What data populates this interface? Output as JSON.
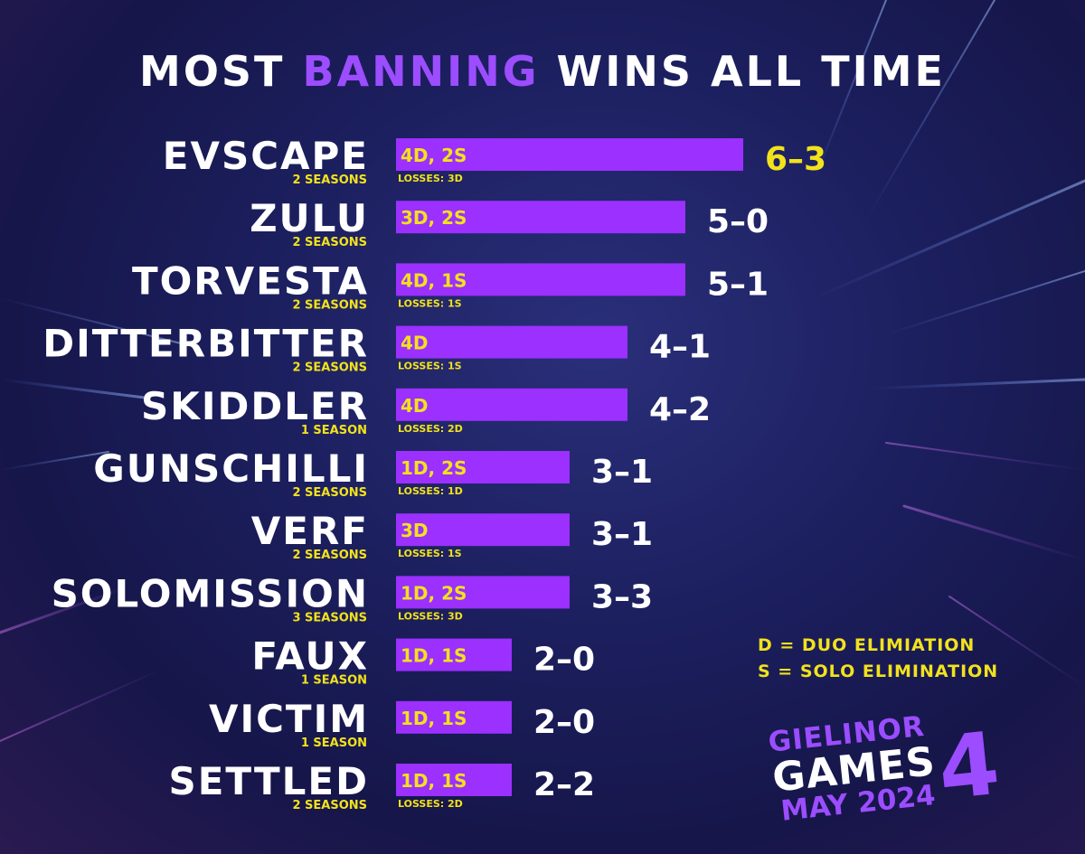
{
  "title": {
    "part1": "MOST ",
    "accent": "BANNING",
    "part2": " WINS ALL TIME"
  },
  "colors": {
    "bar": "#9b30ff",
    "highlight": "#f2e21c",
    "text": "#ffffff",
    "accent": "#9b4dff"
  },
  "legend": {
    "line1": "D = DUO ELIMIATION",
    "line2": "S = SOLO ELIMINATION"
  },
  "logo": {
    "line1": "GIELINOR",
    "line2": "GAMES",
    "line3": "MAY 2024",
    "number": "4"
  },
  "chart_data": {
    "type": "bar",
    "orientation": "horizontal",
    "categories": [
      "EVSCAPE",
      "ZULU",
      "TORVESTA",
      "DITTERBITTER",
      "SKIDDLER",
      "GUNSCHILLI",
      "VERF",
      "SOLOMISSION",
      "FAUX",
      "VICTIM",
      "SETTLED"
    ],
    "seasons": [
      "2 SEASONS",
      "2 SEASONS",
      "2 SEASONS",
      "2 SEASONS",
      "1 SEASON",
      "2 SEASONS",
      "2 SEASONS",
      "3 SEASONS",
      "1 SEASON",
      "1 SEASON",
      "2 SEASONS"
    ],
    "values": [
      6,
      5,
      5,
      4,
      4,
      3,
      3,
      3,
      2,
      2,
      2
    ],
    "bar_labels": [
      "4D, 2S",
      "3D, 2S",
      "4D, 1S",
      "4D",
      "4D",
      "1D, 2S",
      "3D",
      "1D, 2S",
      "1D, 1S",
      "1D, 1S",
      "1D, 1S"
    ],
    "losses_labels": [
      "LOSSES: 3D",
      "",
      "LOSSES: 1S",
      "LOSSES: 1S",
      "LOSSES: 2D",
      "LOSSES: 1D",
      "LOSSES: 1S",
      "LOSSES: 3D",
      "",
      "",
      "LOSSES: 2D"
    ],
    "records": [
      "6–3",
      "5–0",
      "5–1",
      "4–1",
      "4–2",
      "3–1",
      "3–1",
      "3–3",
      "2–0",
      "2–0",
      "2–2"
    ],
    "highlight_index": 0
  }
}
